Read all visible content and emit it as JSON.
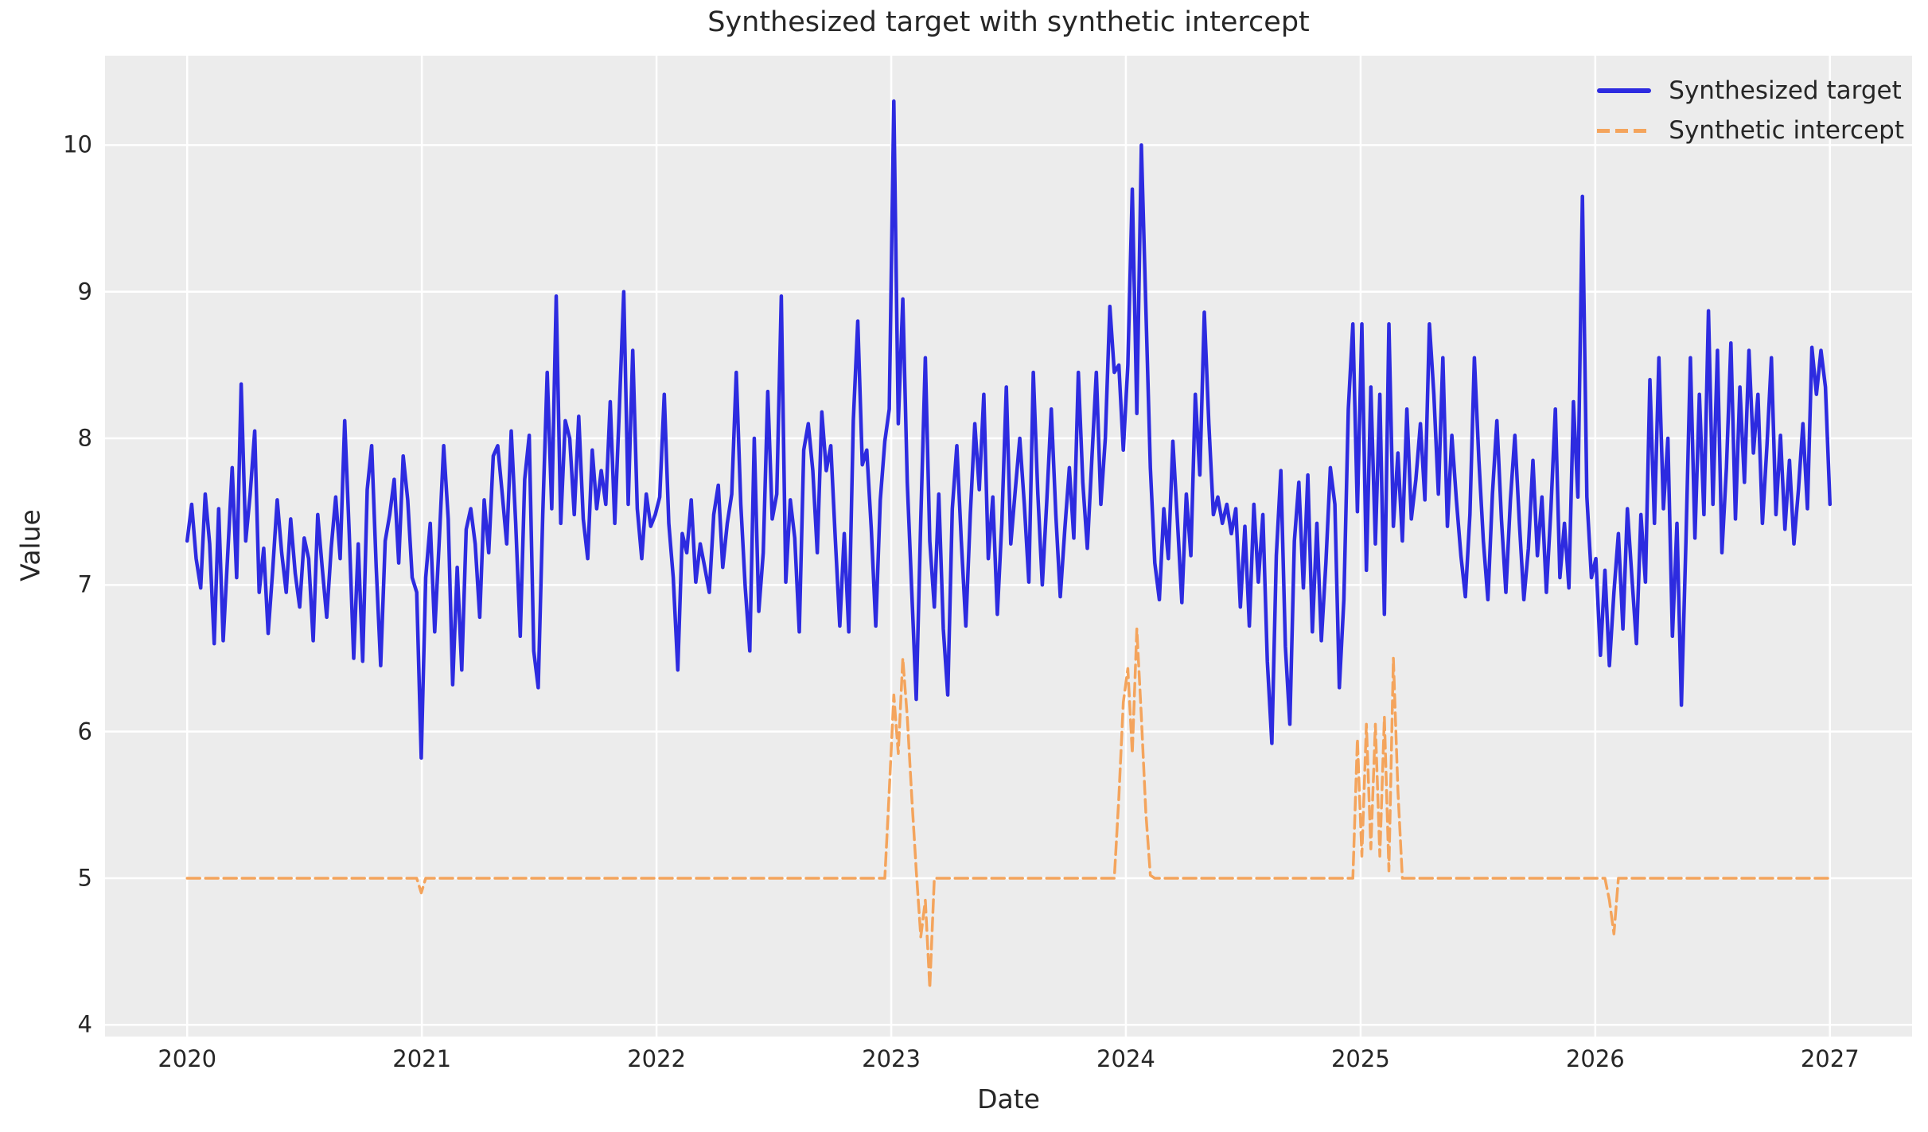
{
  "figure": {
    "title": "Synthesized target with synthetic intercept",
    "background_color": "#ffffff",
    "axes_background_color": "#ececec",
    "grid_color": "#ffffff",
    "text_color": "#262626"
  },
  "chart_data": {
    "type": "line",
    "title": "Synthesized target with synthetic intercept",
    "xlabel": "Date",
    "ylabel": "Value",
    "grid": true,
    "legend_position": "upper right",
    "xlim": [
      2019.65,
      2027.35
    ],
    "ylim": [
      3.92,
      10.61
    ],
    "xticks": [
      2020,
      2021,
      2022,
      2023,
      2024,
      2025,
      2026,
      2027
    ],
    "yticks": [
      4,
      5,
      6,
      7,
      8,
      9,
      10
    ],
    "x_start": 2020.0,
    "x_step": 0.0191780821917808,
    "series": [
      {
        "name": "Synthesized target",
        "color": "#2d2be0",
        "style": "solid",
        "linewidth": 4.5,
        "values": [
          7.3,
          7.55,
          7.18,
          6.98,
          7.62,
          7.28,
          6.6,
          7.52,
          6.62,
          7.2,
          7.8,
          7.05,
          8.37,
          7.3,
          7.62,
          8.05,
          6.95,
          7.25,
          6.67,
          7.1,
          7.58,
          7.22,
          6.95,
          7.45,
          7.08,
          6.85,
          7.32,
          7.18,
          6.62,
          7.48,
          7.12,
          6.78,
          7.25,
          7.6,
          7.18,
          8.12,
          7.35,
          6.5,
          7.28,
          6.48,
          7.65,
          7.95,
          7.12,
          6.45,
          7.3,
          7.48,
          7.72,
          7.15,
          7.88,
          7.58,
          7.05,
          6.95,
          5.82,
          7.05,
          7.42,
          6.68,
          7.3,
          7.95,
          7.45,
          6.32,
          7.12,
          6.42,
          7.38,
          7.52,
          7.28,
          6.78,
          7.58,
          7.22,
          7.88,
          7.95,
          7.62,
          7.28,
          8.05,
          7.42,
          6.65,
          7.72,
          8.02,
          6.55,
          6.3,
          7.48,
          8.45,
          7.52,
          8.97,
          7.42,
          8.12,
          8.0,
          7.48,
          8.15,
          7.45,
          7.18,
          7.92,
          7.52,
          7.78,
          7.55,
          8.25,
          7.42,
          8.18,
          9.0,
          7.55,
          8.6,
          7.52,
          7.18,
          7.62,
          7.4,
          7.48,
          7.6,
          8.3,
          7.42,
          7.05,
          6.42,
          7.35,
          7.22,
          7.58,
          7.02,
          7.28,
          7.12,
          6.95,
          7.48,
          7.68,
          7.12,
          7.42,
          7.62,
          8.45,
          7.55,
          6.98,
          6.55,
          8.0,
          6.82,
          7.22,
          8.32,
          7.45,
          7.62,
          8.97,
          7.02,
          7.58,
          7.32,
          6.68,
          7.92,
          8.1,
          7.78,
          7.22,
          8.18,
          7.78,
          7.95,
          7.32,
          6.72,
          7.35,
          6.68,
          8.12,
          8.8,
          7.82,
          7.92,
          7.38,
          6.72,
          7.58,
          7.98,
          8.2,
          10.3,
          8.1,
          8.95,
          7.7,
          6.95,
          6.22,
          7.45,
          8.55,
          7.3,
          6.85,
          7.62,
          6.7,
          6.25,
          7.52,
          7.95,
          7.3,
          6.72,
          7.48,
          8.1,
          7.65,
          8.3,
          7.18,
          7.6,
          6.8,
          7.42,
          8.35,
          7.28,
          7.65,
          8.0,
          7.55,
          7.02,
          8.45,
          7.62,
          7.0,
          7.58,
          8.2,
          7.48,
          6.92,
          7.38,
          7.8,
          7.32,
          8.45,
          7.7,
          7.25,
          7.85,
          8.45,
          7.55,
          8.0,
          8.9,
          8.45,
          8.5,
          7.92,
          8.5,
          9.7,
          8.17,
          10.0,
          8.9,
          7.8,
          7.15,
          6.9,
          7.52,
          7.18,
          7.98,
          7.45,
          6.88,
          7.62,
          7.2,
          8.3,
          7.75,
          8.86,
          8.1,
          7.48,
          7.6,
          7.42,
          7.55,
          7.35,
          7.52,
          6.85,
          7.4,
          6.72,
          7.55,
          7.02,
          7.48,
          6.48,
          5.92,
          7.2,
          7.78,
          6.58,
          6.05,
          7.3,
          7.7,
          6.98,
          7.75,
          6.68,
          7.42,
          6.62,
          7.15,
          7.8,
          7.55,
          6.3,
          6.9,
          8.2,
          8.78,
          7.5,
          8.78,
          7.1,
          8.35,
          7.28,
          8.3,
          6.8,
          8.78,
          7.4,
          7.9,
          7.3,
          8.2,
          7.45,
          7.72,
          8.1,
          7.58,
          8.78,
          8.3,
          7.62,
          8.55,
          7.4,
          8.02,
          7.58,
          7.2,
          6.92,
          7.48,
          8.55,
          7.85,
          7.3,
          6.9,
          7.62,
          8.12,
          7.45,
          6.95,
          7.58,
          8.02,
          7.42,
          6.9,
          7.25,
          7.85,
          7.2,
          7.6,
          6.95,
          7.52,
          8.2,
          7.05,
          7.42,
          6.98,
          8.25,
          7.6,
          9.65,
          7.6,
          7.05,
          7.18,
          6.52,
          7.1,
          6.45,
          6.95,
          7.35,
          6.7,
          7.52,
          7.05,
          6.6,
          7.48,
          7.02,
          8.4,
          7.42,
          8.55,
          7.52,
          8.0,
          6.65,
          7.42,
          6.18,
          7.3,
          8.55,
          7.32,
          8.3,
          7.48,
          8.87,
          7.55,
          8.6,
          7.22,
          7.8,
          8.65,
          7.45,
          8.35,
          7.7,
          8.6,
          7.9,
          8.3,
          7.42,
          7.95,
          8.55,
          7.48,
          8.02,
          7.38,
          7.85,
          7.28,
          7.65,
          8.1,
          7.52,
          8.62,
          8.3,
          8.6,
          8.35,
          7.55
        ]
      },
      {
        "name": "Synthetic intercept",
        "color": "#f4a45c",
        "style": "dashed",
        "linewidth": 3.5,
        "dash_pattern": [
          16,
          7
        ],
        "values": [
          5,
          5,
          5,
          5,
          5,
          5,
          5,
          5,
          5,
          5,
          5,
          5,
          5,
          5,
          5,
          5,
          5,
          5,
          5,
          5,
          5,
          5,
          5,
          5,
          5,
          5,
          5,
          5,
          5,
          5,
          5,
          5,
          5,
          5,
          5,
          5,
          5,
          5,
          5,
          5,
          5,
          5,
          5,
          5,
          5,
          5,
          5,
          5,
          5,
          5,
          5,
          5,
          4.9,
          5,
          5,
          5,
          5,
          5,
          5,
          5,
          5,
          5,
          5,
          5,
          5,
          5,
          5,
          5,
          5,
          5,
          5,
          5,
          5,
          5,
          5,
          5,
          5,
          5,
          5,
          5,
          5,
          5,
          5,
          5,
          5,
          5,
          5,
          5,
          5,
          5,
          5,
          5,
          5,
          5,
          5,
          5,
          5,
          5,
          5,
          5,
          5,
          5,
          5,
          5,
          5,
          5,
          5,
          5,
          5,
          5,
          5,
          5,
          5,
          5,
          5,
          5,
          5,
          5,
          5,
          5,
          5,
          5,
          5,
          5,
          5,
          5,
          5,
          5,
          5,
          5,
          5,
          5,
          5,
          5,
          5,
          5,
          5,
          5,
          5,
          5,
          5,
          5,
          5,
          5,
          5,
          5,
          5,
          5,
          5,
          5,
          5,
          5,
          5,
          5,
          5,
          5,
          5.6,
          6.25,
          5.85,
          6.5,
          6.1,
          5.55,
          5.05,
          4.6,
          4.85,
          4.25,
          5,
          5,
          5,
          5,
          5,
          5,
          5,
          5,
          5,
          5,
          5,
          5,
          5,
          5,
          5,
          5,
          5,
          5,
          5,
          5,
          5,
          5,
          5,
          5,
          5,
          5,
          5,
          5,
          5,
          5,
          5,
          5,
          5,
          5,
          5,
          5,
          5,
          5,
          5,
          5,
          5,
          5.55,
          6.2,
          6.43,
          5.85,
          6.7,
          6.1,
          5.45,
          5.02,
          5,
          5,
          5,
          5,
          5,
          5,
          5,
          5,
          5,
          5,
          5,
          5,
          5,
          5,
          5,
          5,
          5,
          5,
          5,
          5,
          5,
          5,
          5,
          5,
          5,
          5,
          5,
          5,
          5,
          5,
          5,
          5,
          5,
          5,
          5,
          5,
          5,
          5,
          5,
          5,
          5,
          5,
          5,
          5,
          5,
          5.95,
          5.15,
          6.05,
          5.2,
          6.05,
          5.15,
          6.1,
          5.05,
          6.5,
          5.6,
          5,
          5,
          5,
          5,
          5,
          5,
          5,
          5,
          5,
          5,
          5,
          5,
          5,
          5,
          5,
          5,
          5,
          5,
          5,
          5,
          5,
          5,
          5,
          5,
          5,
          5,
          5,
          5,
          5,
          5,
          5,
          5,
          5,
          5,
          5,
          5,
          5,
          5,
          5,
          5,
          5,
          5,
          5,
          5,
          5,
          5,
          4.85,
          4.62,
          5,
          5,
          5,
          5,
          5,
          5,
          5,
          5,
          5,
          5,
          5,
          5,
          5,
          5,
          5,
          5,
          5,
          5,
          5,
          5,
          5,
          5,
          5,
          5,
          5,
          5,
          5,
          5,
          5,
          5,
          5,
          5,
          5,
          5,
          5,
          5,
          5,
          5,
          5,
          5,
          5,
          5,
          5,
          5,
          5,
          5,
          5,
          5
        ]
      }
    ]
  },
  "legend": {
    "items": [
      {
        "label": "Synthesized target"
      },
      {
        "label": "Synthetic intercept"
      }
    ]
  }
}
